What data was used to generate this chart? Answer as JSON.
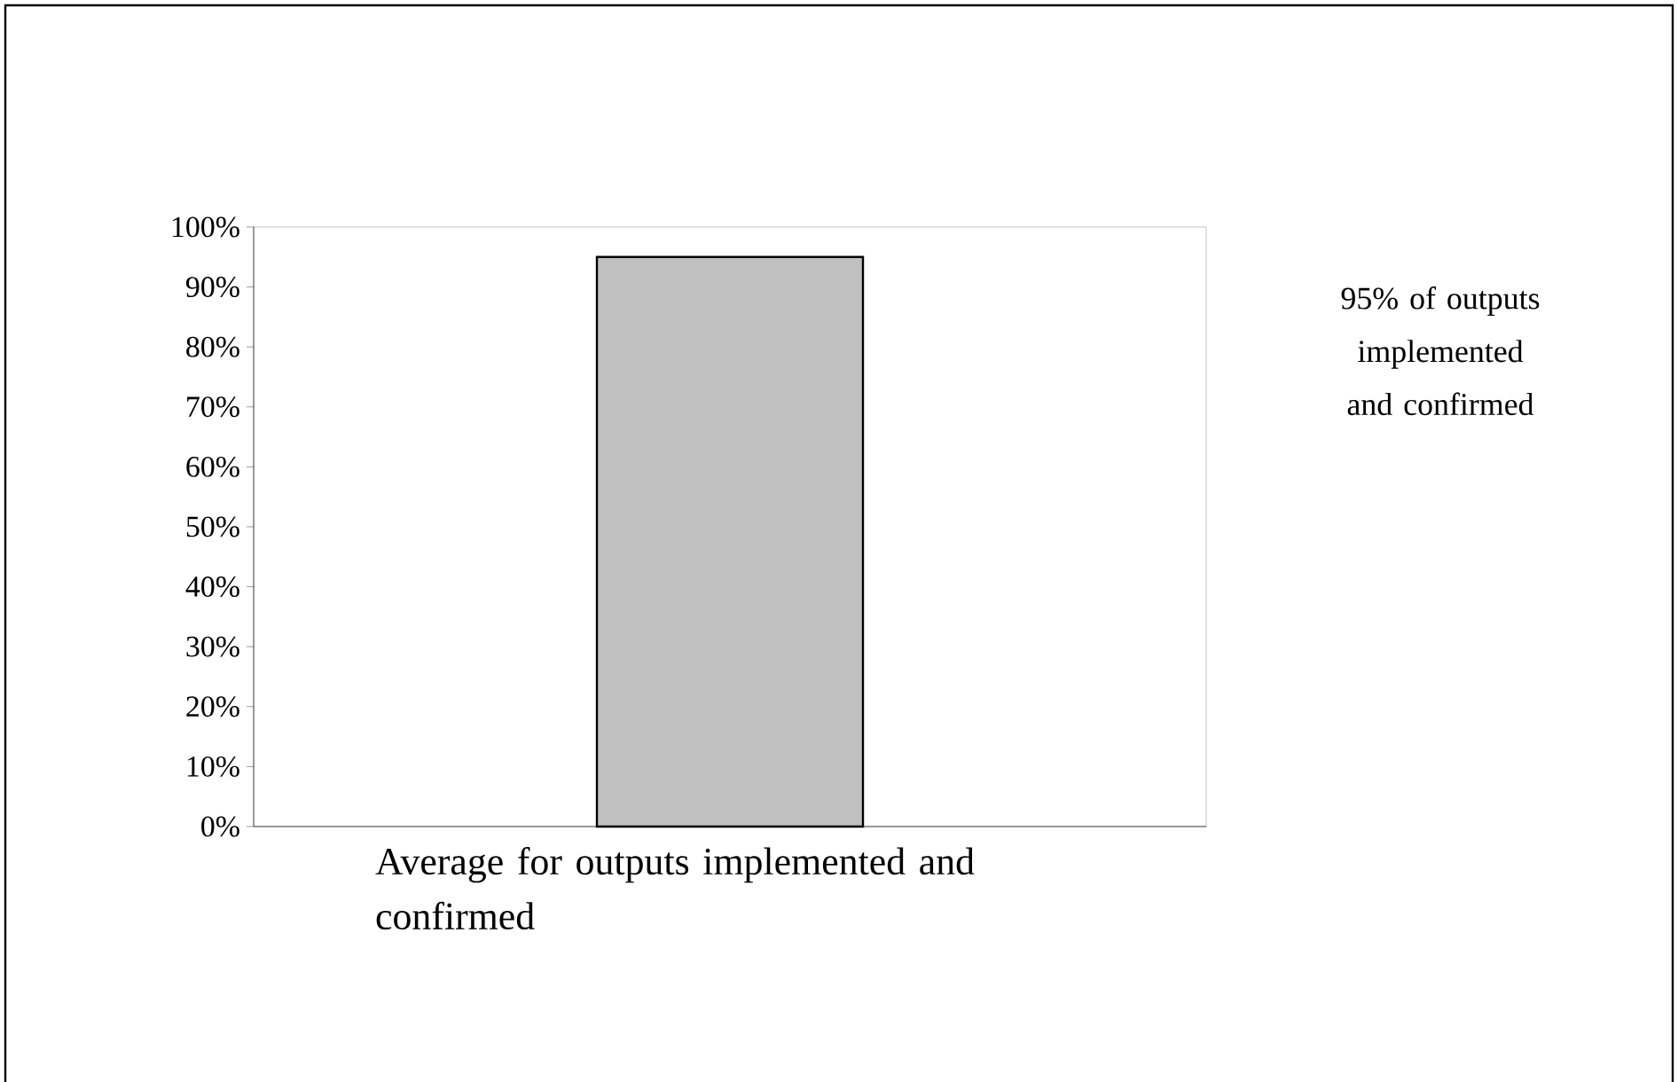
{
  "chart_data": {
    "type": "bar",
    "categories": [
      "Average for outputs implemented and confirmed"
    ],
    "values": [
      95
    ],
    "color": "#c0c0c0",
    "ylim": [
      0,
      100
    ],
    "yticks": [
      {
        "value": 0,
        "label": "0%"
      },
      {
        "value": 10,
        "label": "10%"
      },
      {
        "value": 20,
        "label": "20%"
      },
      {
        "value": 30,
        "label": "30%"
      },
      {
        "value": 40,
        "label": "40%"
      },
      {
        "value": 50,
        "label": "50%"
      },
      {
        "value": 60,
        "label": "60%"
      },
      {
        "value": 70,
        "label": "70%"
      },
      {
        "value": 80,
        "label": "80%"
      },
      {
        "value": 90,
        "label": "90%"
      },
      {
        "value": 100,
        "label": "100%"
      }
    ],
    "annotations": [
      "95% of outputs implemented and confirmed"
    ],
    "grid": false
  }
}
